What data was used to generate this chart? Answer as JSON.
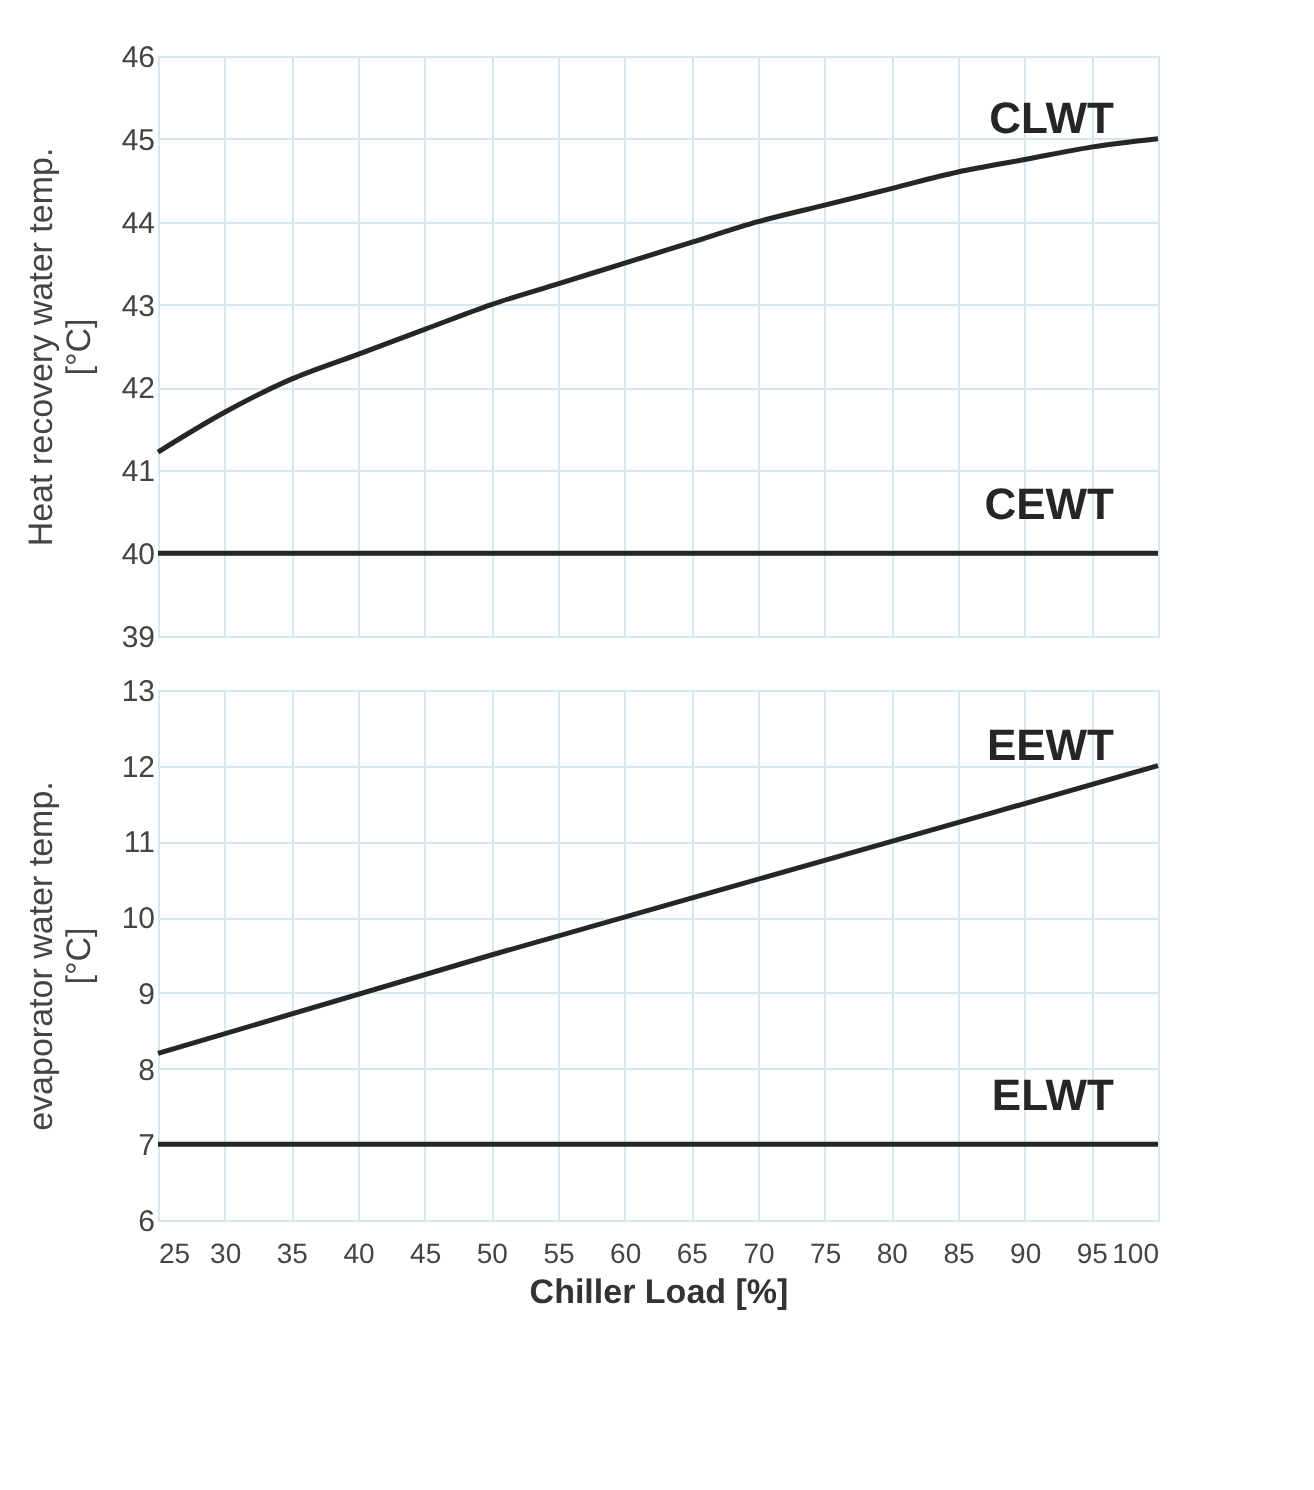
{
  "chart_data": [
    {
      "type": "line",
      "ylabel": "Heat recovery water temp.\n[°C]",
      "xlim": [
        25,
        100
      ],
      "xticks": [
        25,
        30,
        35,
        40,
        45,
        50,
        55,
        60,
        65,
        70,
        75,
        80,
        85,
        90,
        95,
        100
      ],
      "ylim": [
        39,
        46
      ],
      "yticks": [
        39,
        40,
        41,
        42,
        43,
        44,
        45,
        46
      ],
      "grid": true,
      "tick_labels": "y",
      "series": [
        {
          "name": "CLWT",
          "color": "#262626",
          "x": [
            25,
            30,
            35,
            40,
            45,
            50,
            55,
            60,
            65,
            70,
            75,
            80,
            85,
            90,
            95,
            100
          ],
          "values": [
            41.22,
            41.7,
            42.1,
            42.4,
            42.7,
            43.0,
            43.25,
            43.5,
            43.75,
            44.0,
            44.2,
            44.4,
            44.6,
            44.75,
            44.9,
            45.0
          ]
        },
        {
          "name": "CEWT",
          "color": "#262626",
          "x": [
            25,
            100
          ],
          "values": [
            40,
            40
          ]
        }
      ]
    },
    {
      "type": "line",
      "ylabel": "evaporator water temp.\n[°C]",
      "xlabel": "Chiller Load [%]",
      "xlim": [
        25,
        100
      ],
      "xticks": [
        25,
        30,
        35,
        40,
        45,
        50,
        55,
        60,
        65,
        70,
        75,
        80,
        85,
        90,
        95,
        100
      ],
      "ylim": [
        6,
        13
      ],
      "yticks": [
        6,
        7,
        8,
        9,
        10,
        11,
        12,
        13
      ],
      "grid": true,
      "series": [
        {
          "name": "EEWT",
          "color": "#262626",
          "x": [
            25,
            50,
            75,
            100
          ],
          "values": [
            8.2,
            9.5,
            10.75,
            12
          ]
        },
        {
          "name": "ELWT",
          "color": "#262626",
          "x": [
            25,
            100
          ],
          "values": [
            7,
            7
          ]
        }
      ]
    }
  ]
}
